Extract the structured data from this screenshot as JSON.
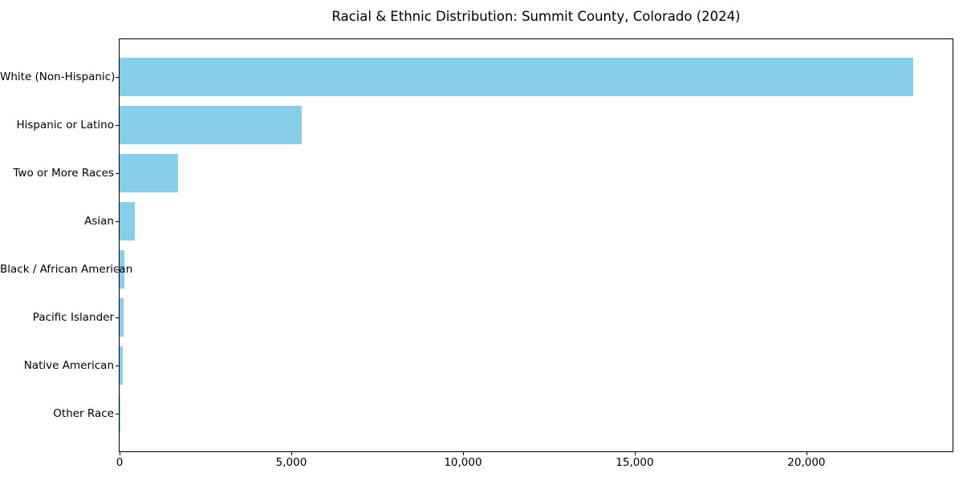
{
  "chart_data": {
    "type": "bar",
    "orientation": "horizontal",
    "title": "Racial & Ethnic Distribution: Summit County, Colorado (2024)",
    "categories": [
      "White (Non-Hispanic)",
      "Hispanic or Latino",
      "Two or More Races",
      "Asian",
      "Black / African American",
      "Pacific Islander",
      "Native American",
      "Other Race"
    ],
    "values": [
      23100,
      5300,
      1700,
      450,
      150,
      120,
      90,
      15
    ],
    "xlabel": "",
    "ylabel": "",
    "xlim": [
      0,
      24255
    ],
    "xticks": [
      0,
      5000,
      10000,
      15000,
      20000
    ],
    "xtick_labels": [
      "0",
      "5,000",
      "10,000",
      "15,000",
      "20,000"
    ],
    "bar_color": "#87CEEB",
    "background_color": "#ffffff",
    "spine_color": "#000000",
    "text_color": "#000000",
    "grid": false,
    "legend": "none",
    "category_order": "largest_at_top"
  }
}
